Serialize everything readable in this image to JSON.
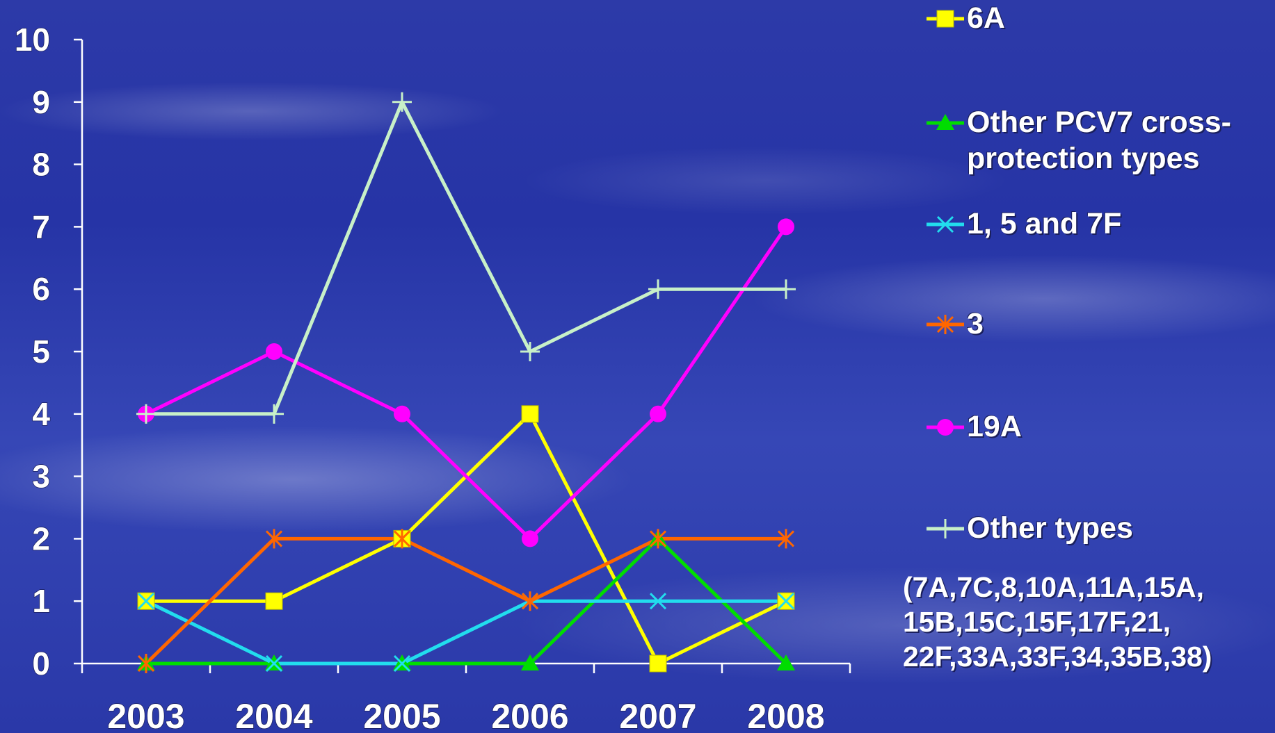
{
  "chart_data": {
    "type": "line",
    "categories": [
      "2003",
      "2004",
      "2005",
      "2006",
      "2007",
      "2008"
    ],
    "ylim": [
      0,
      10
    ],
    "yticks": [
      "0",
      "1",
      "2",
      "3",
      "4",
      "5",
      "6",
      "7",
      "8",
      "9",
      "10"
    ],
    "series": [
      {
        "name": "6A",
        "color": "#ffff00",
        "marker": "square",
        "values": [
          1,
          1,
          2,
          4,
          0,
          1
        ]
      },
      {
        "name": "Other PCV7 cross-\nprotection types",
        "color": "#00dd00",
        "marker": "triangle",
        "values": [
          0,
          0,
          0,
          0,
          2,
          0
        ]
      },
      {
        "name": "1, 5 and 7F",
        "color": "#22ddee",
        "marker": "x",
        "values": [
          1,
          0,
          0,
          1,
          1,
          1
        ]
      },
      {
        "name": "3",
        "color": "#ff6600",
        "marker": "asterisk",
        "values": [
          0,
          2,
          2,
          1,
          2,
          2
        ]
      },
      {
        "name": "19A",
        "color": "#ff00ff",
        "marker": "circle",
        "values": [
          4,
          5,
          4,
          2,
          4,
          7
        ]
      },
      {
        "name": "Other types",
        "color": "#c8f0c8",
        "marker": "plus",
        "values": [
          4,
          4,
          9,
          5,
          6,
          6
        ]
      }
    ],
    "legend_position": "right",
    "note": "(7A,7C,8,10A,11A,15A, 15B,15C,15F,17F,21, 22F,33A,33F,34,35B,38)"
  }
}
